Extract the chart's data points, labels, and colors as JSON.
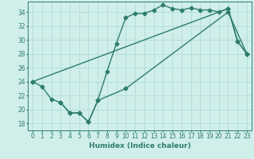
{
  "xlabel": "Humidex (Indice chaleur)",
  "xlim": [
    -0.5,
    23.5
  ],
  "ylim": [
    17.0,
    35.5
  ],
  "yticks": [
    18,
    20,
    22,
    24,
    26,
    28,
    30,
    32,
    34
  ],
  "xticks": [
    0,
    1,
    2,
    3,
    4,
    5,
    6,
    7,
    8,
    9,
    10,
    11,
    12,
    13,
    14,
    15,
    16,
    17,
    18,
    19,
    20,
    21,
    22,
    23
  ],
  "xtick_labels": [
    "0",
    "1",
    "2",
    "3",
    "4",
    "5",
    "6",
    "7",
    "8",
    "9",
    "10",
    "11",
    "12",
    "13",
    "14",
    "15",
    "16",
    "17",
    "18",
    "19",
    "20",
    "21",
    "22",
    "23"
  ],
  "bg_color": "#d0eeea",
  "line_color": "#2d7d6e",
  "grid_color": "#b0ddd8",
  "line1_x": [
    0,
    1,
    2,
    3,
    4,
    5,
    6,
    7,
    8,
    9,
    10,
    11,
    12,
    13,
    14,
    15,
    16,
    17,
    18,
    19,
    20,
    21,
    22,
    23
  ],
  "line1_y": [
    24.0,
    23.3,
    21.5,
    21.0,
    19.5,
    19.5,
    18.2,
    21.3,
    25.5,
    29.5,
    33.2,
    33.8,
    33.8,
    34.3,
    35.0,
    34.5,
    34.3,
    34.6,
    34.3,
    34.3,
    34.0,
    34.5,
    29.8,
    28.0
  ],
  "line2_x": [
    0,
    21,
    22,
    23
  ],
  "line2_y": [
    24.0,
    34.5,
    29.8,
    28.0
  ],
  "line3_x": [
    3,
    4,
    5,
    6,
    7,
    10,
    21,
    23
  ],
  "line3_y": [
    21.0,
    19.5,
    19.5,
    18.2,
    21.3,
    23.0,
    34.0,
    28.0
  ],
  "marker_size": 2.5,
  "line_width": 1.0,
  "xlabel_fontsize": 6.5,
  "tick_fontsize": 5.5
}
